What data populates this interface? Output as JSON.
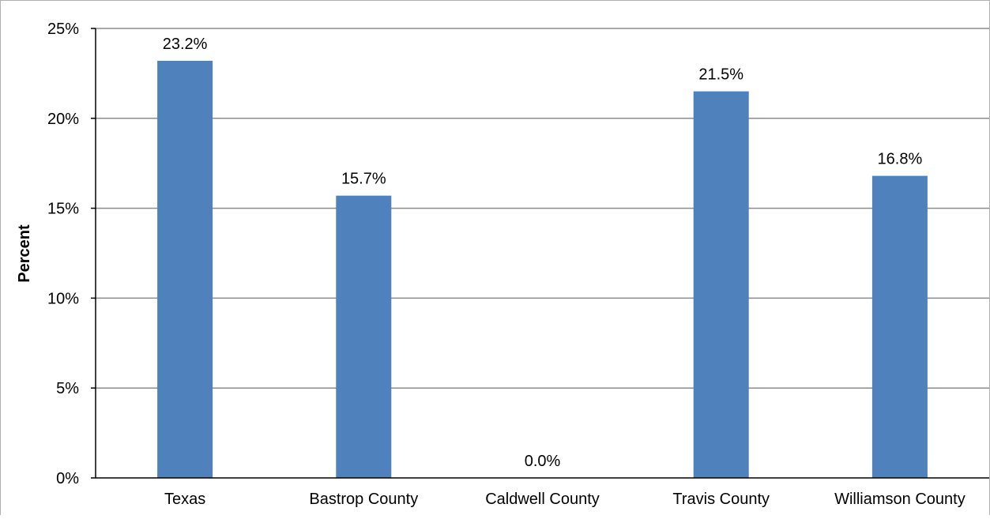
{
  "chart_data": {
    "type": "bar",
    "categories": [
      "Texas",
      "Bastrop County",
      "Caldwell County",
      "Travis County",
      "Williamson County"
    ],
    "values": [
      23.2,
      15.7,
      0.0,
      21.5,
      16.8
    ],
    "data_labels": [
      "23.2%",
      "15.7%",
      "0.0%",
      "21.5%",
      "16.8%"
    ],
    "title": "",
    "xlabel": "",
    "ylabel": "Percent",
    "ylim": [
      0,
      25
    ],
    "yticks": [
      0,
      5,
      10,
      15,
      20,
      25
    ],
    "ytick_labels": [
      "0%",
      "5%",
      "10%",
      "15%",
      "20%",
      "25%"
    ],
    "grid": true,
    "legend": "none",
    "bar_color": "#4f81bd",
    "grid_color": "#8c8c8c"
  }
}
